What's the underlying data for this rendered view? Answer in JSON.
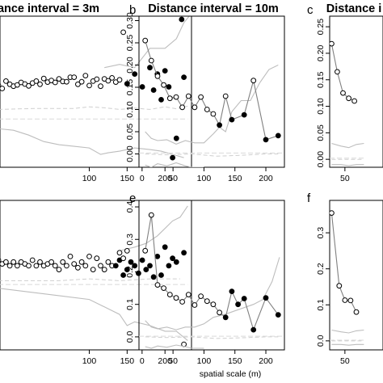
{
  "chart_data": [
    {
      "id": "a",
      "panel_label": "",
      "title": "ance interval = 3m",
      "type": "line",
      "xticks": [
        100,
        150,
        200
      ],
      "xlim": [
        -20,
        235
      ],
      "yticks": [],
      "ylim": [
        -0.15,
        0.32
      ],
      "envelope_upper": {
        "x": [
          120,
          140,
          160,
          180,
          200,
          215,
          225,
          232
        ],
        "y": [
          0.16,
          0.17,
          0.16,
          0.22,
          0.22,
          0.25,
          0.3,
          0.32
        ]
      },
      "envelope_lower": {
        "x": [
          -20,
          0,
          20,
          40,
          60,
          80,
          100,
          115,
          125,
          140,
          160,
          180,
          195,
          210,
          225
        ],
        "y": [
          -0.03,
          -0.035,
          -0.05,
          -0.07,
          -0.08,
          -0.085,
          -0.09,
          -0.11,
          -0.105,
          -0.1,
          -0.09,
          -0.095,
          -0.1,
          -0.11,
          -0.12
        ]
      },
      "envelope_inner": {
        "x": [
          -20,
          30,
          80,
          100,
          120,
          140,
          160,
          180,
          200,
          215,
          230
        ],
        "y": [
          0.03,
          0.033,
          0.033,
          0.038,
          0.035,
          0.03,
          0.034,
          0.03,
          0.038,
          0.032,
          0.04
        ]
      },
      "baseline": {
        "x": [
          -20,
          230
        ],
        "y": [
          0.0,
          0.0
        ]
      },
      "series": [
        {
          "x": [
            -20,
            -15,
            -10,
            -5,
            0,
            5,
            10,
            15,
            20,
            25,
            30,
            35,
            40,
            45,
            50,
            55,
            60,
            65,
            70,
            75,
            80,
            85,
            90,
            95,
            100,
            105,
            110,
            115,
            120,
            125,
            130,
            135,
            140,
            145
          ],
          "y": [
            0.105,
            0.095,
            0.118,
            0.108,
            0.102,
            0.106,
            0.114,
            0.109,
            0.103,
            0.112,
            0.118,
            0.108,
            0.126,
            0.115,
            0.12,
            0.114,
            0.125,
            0.117,
            0.116,
            0.13,
            0.13,
            0.108,
            0.116,
            0.135,
            0.104,
            0.118,
            0.124,
            0.102,
            0.125,
            0.119,
            0.128,
            0.115,
            0.122,
            0.27
          ],
          "filled": []
        },
        {
          "x": [
            150,
            160,
            170,
            180,
            185,
            190,
            195,
            200,
            205,
            210,
            215,
            225
          ],
          "y": [
            0.11,
            0.14,
            0.1,
            0.16,
            0.09,
            0.14,
            0.06,
            0.15,
            0.1,
            -0.12,
            -0.06,
            0.13
          ],
          "filled": [
            0,
            1,
            2,
            3,
            4,
            5,
            6,
            7,
            8,
            9,
            10,
            11
          ]
        }
      ],
      "single_points": {
        "x": [
          222
        ],
        "y": [
          0.31
        ],
        "filled": [
          true
        ]
      }
    },
    {
      "id": "b",
      "panel_label": "b",
      "title": "Distance interval = 10m",
      "type": "line",
      "xticks": [
        0,
        50,
        100,
        150,
        200
      ],
      "xlim": [
        -5,
        230
      ],
      "yticks": [
        0.0,
        0.05,
        0.1,
        0.15,
        0.2,
        0.25,
        0.3
      ],
      "ylim": [
        -0.03,
        0.31
      ],
      "envelope_upper": {
        "x": [
          5,
          15,
          25,
          40,
          55,
          70,
          85,
          100,
          115,
          125,
          135,
          145,
          160,
          175,
          190,
          205,
          220
        ],
        "y": [
          0.05,
          0.035,
          0.03,
          0.032,
          0.022,
          0.03,
          0.025,
          0.025,
          0.045,
          0.06,
          0.05,
          0.095,
          0.12,
          0.12,
          0.16,
          0.19,
          0.2
        ]
      },
      "envelope_lower": {
        "x": [
          5,
          15,
          25,
          40,
          55,
          70,
          80,
          90,
          100
        ],
        "y": [
          -0.025,
          -0.03,
          -0.022,
          -0.027,
          -0.02,
          -0.027,
          -0.03,
          -0.03,
          -0.03
        ]
      },
      "envelope_inner": {
        "x": [
          5,
          40,
          80,
          120,
          160,
          200,
          220
        ],
        "y": [
          0.0,
          -0.002,
          0.0,
          -0.005,
          -0.003,
          0.0,
          0.0
        ]
      },
      "baseline": {
        "x": [
          -5,
          230
        ],
        "y": [
          0.002,
          0.002
        ]
      },
      "series": [
        {
          "x": [
            5,
            15,
            25,
            35,
            45,
            55,
            65,
            75,
            85,
            95,
            105,
            115,
            125,
            135,
            145,
            165,
            180,
            200,
            220
          ],
          "y": [
            0.255,
            0.21,
            0.175,
            0.155,
            0.125,
            0.128,
            0.105,
            0.13,
            0.105,
            0.128,
            0.1,
            0.09,
            0.065,
            0.13,
            0.077,
            0.088,
            0.165,
            0.032,
            0.041
          ],
          "filled": [
            12,
            14,
            15,
            17,
            18
          ]
        }
      ]
    },
    {
      "id": "c",
      "panel_label": "c",
      "title": "Distance i",
      "type": "line",
      "xticks": [
        50
      ],
      "xlim": [
        10,
        150
      ],
      "yticks": [
        0.0,
        0.05,
        0.1,
        0.15,
        0.2,
        0.25
      ],
      "ylim": [
        -0.015,
        0.27
      ],
      "envelope_upper": {
        "x": [
          15,
          40,
          60,
          80,
          100
        ],
        "y": [
          0.03,
          0.025,
          0.022,
          0.028,
          0.03
        ]
      },
      "envelope_lower": {
        "x": [
          15,
          40,
          60,
          80,
          100
        ],
        "y": [
          -0.01,
          -0.01,
          -0.012,
          -0.01,
          -0.01
        ]
      },
      "envelope_inner": {
        "x": [
          15,
          100
        ],
        "y": [
          0.0,
          0.0
        ]
      },
      "baseline": {
        "x": [
          10,
          100
        ],
        "y": [
          0.002,
          0.002
        ]
      },
      "series": [
        {
          "x": [
            15,
            30,
            45,
            60,
            75
          ],
          "y": [
            0.218,
            0.165,
            0.125,
            0.115,
            0.11
          ],
          "filled": []
        }
      ]
    },
    {
      "id": "d",
      "panel_label": "",
      "title": "",
      "type": "line",
      "xticks": [
        100,
        150,
        200
      ],
      "xlim": [
        -20,
        235
      ],
      "yticks": [],
      "ylim": [
        -0.35,
        0.45
      ],
      "envelope_upper": {
        "x": [
          140,
          160,
          175,
          190,
          200,
          210,
          220,
          230
        ],
        "y": [
          0.18,
          0.2,
          0.22,
          0.26,
          0.3,
          0.34,
          0.36,
          0.42
        ]
      },
      "envelope_lower": {
        "x": [
          -20,
          20,
          60,
          100,
          120,
          140,
          150,
          160,
          180,
          200,
          215,
          230
        ],
        "y": [
          -0.02,
          -0.04,
          -0.06,
          -0.08,
          -0.12,
          -0.16,
          -0.22,
          -0.2,
          -0.22,
          -0.25,
          -0.25,
          -0.3
        ]
      },
      "envelope_inner": {
        "x": [
          -20,
          60,
          100,
          140,
          180,
          220
        ],
        "y": [
          0.02,
          0.02,
          0.03,
          0.02,
          0.03,
          0.03
        ]
      },
      "baseline": {
        "x": [
          -20,
          230
        ],
        "y": [
          0.0,
          0.0
        ]
      },
      "series": [
        {
          "x": [
            -20,
            -15,
            -10,
            -5,
            0,
            5,
            10,
            15,
            20,
            25,
            30,
            35,
            40,
            45,
            50,
            55,
            60,
            65,
            70,
            75,
            80,
            85,
            90,
            95,
            100,
            105,
            110,
            115,
            120,
            125,
            130
          ],
          "y": [
            0.13,
            0.11,
            0.12,
            0.1,
            0.12,
            0.1,
            0.12,
            0.11,
            0.1,
            0.13,
            0.1,
            0.12,
            0.1,
            0.11,
            0.12,
            0.1,
            0.08,
            0.12,
            0.1,
            0.15,
            0.11,
            0.09,
            0.12,
            0.1,
            0.15,
            0.08,
            0.14,
            0.1,
            0.08,
            0.12,
            0.1
          ],
          "filled": []
        },
        {
          "x": [
            135,
            140,
            145,
            150,
            155,
            160,
            165,
            170,
            175,
            180,
            185,
            190,
            195,
            200,
            205,
            210,
            215,
            225
          ],
          "y": [
            0.1,
            0.13,
            0.05,
            0.08,
            0.12,
            0.1,
            0.06,
            0.13,
            0.08,
            0.1,
            0.04,
            0.15,
            0.05,
            0.2,
            0.1,
            0.14,
            0.12,
            0.17
          ],
          "filled": [
            0,
            1,
            2,
            3,
            4,
            5,
            6,
            7,
            8,
            9,
            10,
            11,
            12,
            13,
            14,
            15,
            16,
            17
          ]
        }
      ],
      "single_points": {
        "x": [
          140,
          145,
          150,
          225
        ],
        "y": [
          0.17,
          0.14,
          0.18,
          -0.32
        ],
        "filled": [
          false,
          false,
          false,
          false
        ]
      }
    },
    {
      "id": "e",
      "panel_label": "e",
      "title": "",
      "type": "line",
      "xticks": [
        0,
        50,
        100,
        150,
        200
      ],
      "xlim": [
        -5,
        230
      ],
      "yticks": [
        0.0,
        0.1,
        0.2,
        0.3,
        0.4
      ],
      "ylim": [
        -0.04,
        0.42
      ],
      "envelope_upper": {
        "x": [
          5,
          15,
          25,
          40,
          55,
          70,
          85,
          100,
          115,
          125,
          135,
          150,
          165,
          180,
          195,
          210,
          222
        ],
        "y": [
          0.05,
          0.03,
          0.025,
          0.03,
          0.022,
          0.03,
          0.03,
          0.04,
          0.06,
          0.065,
          0.07,
          0.08,
          0.09,
          0.1,
          0.115,
          0.17,
          0.245
        ]
      },
      "envelope_lower": {
        "x": [
          5,
          15,
          25,
          40,
          55,
          70,
          80,
          90,
          100
        ],
        "y": [
          -0.03,
          -0.035,
          -0.028,
          -0.032,
          -0.025,
          -0.03,
          -0.035,
          -0.035,
          -0.035
        ]
      },
      "envelope_inner": {
        "x": [
          5,
          40,
          80,
          120,
          160,
          200,
          220
        ],
        "y": [
          0.0,
          -0.002,
          0.0,
          -0.005,
          -0.003,
          0.0,
          0.0
        ]
      },
      "baseline": {
        "x": [
          -5,
          230
        ],
        "y": [
          0.002,
          0.002
        ]
      },
      "series": [
        {
          "x": [
            5,
            15,
            25,
            35,
            45,
            55,
            65,
            75,
            85,
            95,
            105,
            115,
            125,
            135,
            145,
            155,
            165,
            180,
            200,
            220
          ],
          "y": [
            0.265,
            0.375,
            0.16,
            0.15,
            0.13,
            0.12,
            0.108,
            0.13,
            0.098,
            0.125,
            0.11,
            0.1,
            0.075,
            0.06,
            0.14,
            0.1,
            0.118,
            0.022,
            0.12,
            0.068
          ],
          "filled": [
            13,
            14,
            15,
            16,
            17,
            18,
            19
          ]
        }
      ]
    },
    {
      "id": "f",
      "panel_label": "f",
      "title": "",
      "type": "line",
      "xticks": [
        50
      ],
      "xlim": [
        10,
        150
      ],
      "yticks": [
        0.0,
        0.1,
        0.2,
        0.3
      ],
      "ylim": [
        -0.025,
        0.39
      ],
      "envelope_upper": {
        "x": [
          15,
          40,
          60,
          80,
          100
        ],
        "y": [
          0.03,
          0.025,
          0.022,
          0.028,
          0.03
        ]
      },
      "envelope_lower": {
        "x": [
          15,
          40,
          60,
          80,
          100
        ],
        "y": [
          -0.01,
          -0.01,
          -0.012,
          -0.01,
          -0.01
        ]
      },
      "envelope_inner": {
        "x": [
          15,
          100
        ],
        "y": [
          0.0,
          0.0
        ]
      },
      "baseline": {
        "x": [
          10,
          100
        ],
        "y": [
          0.002,
          0.002
        ]
      },
      "series": [
        {
          "x": [
            15,
            35,
            50,
            65,
            80
          ],
          "y": [
            0.355,
            0.153,
            0.113,
            0.112,
            0.08
          ],
          "filled": []
        }
      ]
    }
  ],
  "figure": {
    "xlabel": "spatial scale (m)"
  }
}
